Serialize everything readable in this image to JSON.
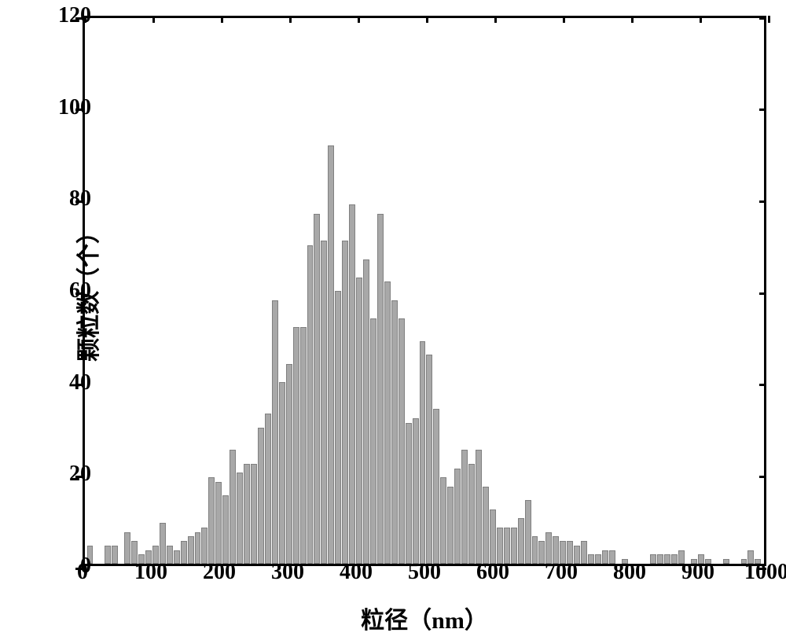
{
  "chart": {
    "type": "histogram",
    "xlabel": "粒径（nm）",
    "ylabel": "颗粒数（个）",
    "label_fontsize": 30,
    "tick_fontsize": 28,
    "xlim": [
      0,
      1000
    ],
    "ylim": [
      0,
      120
    ],
    "xtick_step": 100,
    "ytick_step": 20,
    "xticks": [
      0,
      100,
      200,
      300,
      400,
      500,
      600,
      700,
      800,
      900,
      1000
    ],
    "yticks": [
      0,
      20,
      40,
      60,
      80,
      100,
      120
    ],
    "background_color": "#ffffff",
    "bar_color": "#a8a8a8",
    "bar_border_color": "#808080",
    "axis_color": "#000000",
    "axis_width": 3,
    "bin_width": 10,
    "bars": [
      4,
      0,
      0,
      4,
      4,
      0,
      7,
      5,
      2,
      3,
      4,
      9,
      4,
      3,
      5,
      6,
      7,
      8,
      19,
      18,
      15,
      25,
      20,
      22,
      22,
      30,
      33,
      58,
      40,
      44,
      52,
      52,
      70,
      77,
      71,
      92,
      60,
      71,
      79,
      63,
      67,
      54,
      77,
      62,
      58,
      54,
      31,
      32,
      49,
      46,
      34,
      19,
      17,
      21,
      25,
      22,
      25,
      17,
      12,
      8,
      8,
      8,
      10,
      14,
      6,
      5,
      7,
      6,
      5,
      5,
      4,
      5,
      2,
      2,
      3,
      3,
      0,
      1,
      0,
      0,
      0,
      0,
      2,
      2,
      2,
      2,
      3,
      0,
      1,
      2,
      1,
      0,
      0,
      1,
      0,
      0,
      1,
      3,
      1,
      0
    ]
  }
}
